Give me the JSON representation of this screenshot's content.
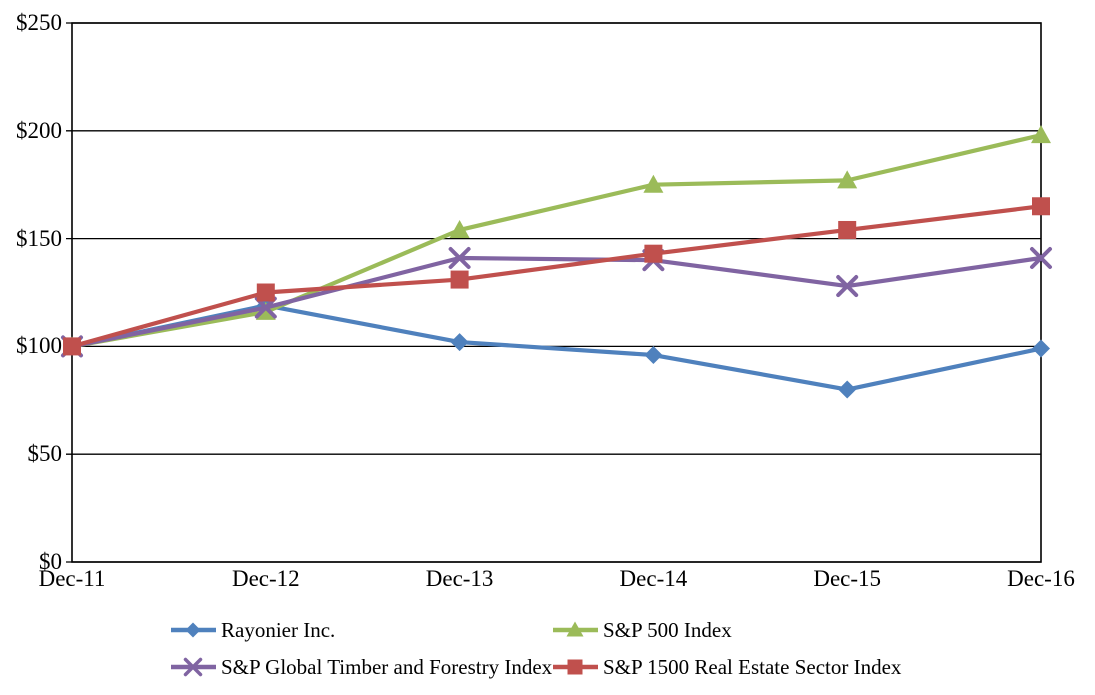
{
  "chart_data": {
    "type": "line",
    "title": "",
    "xlabel": "",
    "ylabel": "",
    "ylim": [
      0,
      250
    ],
    "grid": true,
    "legend_position": "bottom",
    "categories": [
      "Dec-11",
      "Dec-12",
      "Dec-13",
      "Dec-14",
      "Dec-15",
      "Dec-16"
    ],
    "y_ticks": [
      {
        "label": "$250",
        "value": 250
      },
      {
        "label": "$200",
        "value": 200
      },
      {
        "label": "$150",
        "value": 150
      },
      {
        "label": "$100",
        "value": 100
      },
      {
        "label": "$50",
        "value": 50
      },
      {
        "label": "$0",
        "value": 0
      }
    ],
    "series": [
      {
        "name": "Rayonier Inc.",
        "color": "#4F81BD",
        "marker": "diamond",
        "values": [
          100,
          119,
          102,
          96,
          80,
          99
        ]
      },
      {
        "name": "S&P 500 Index",
        "color": "#9BBB59",
        "marker": "triangle",
        "values": [
          100,
          116,
          154,
          175,
          177,
          198
        ]
      },
      {
        "name": "S&P Global Timber and Forestry Index",
        "color": "#8064A2",
        "marker": "x",
        "values": [
          100,
          118,
          141,
          140,
          128,
          141
        ]
      },
      {
        "name": "S&P 1500 Real Estate Sector Index",
        "color": "#C0504D",
        "marker": "square",
        "values": [
          100,
          125,
          131,
          143,
          154,
          165
        ]
      }
    ],
    "axis_color": "#000000",
    "gridline_color": "#000000"
  }
}
